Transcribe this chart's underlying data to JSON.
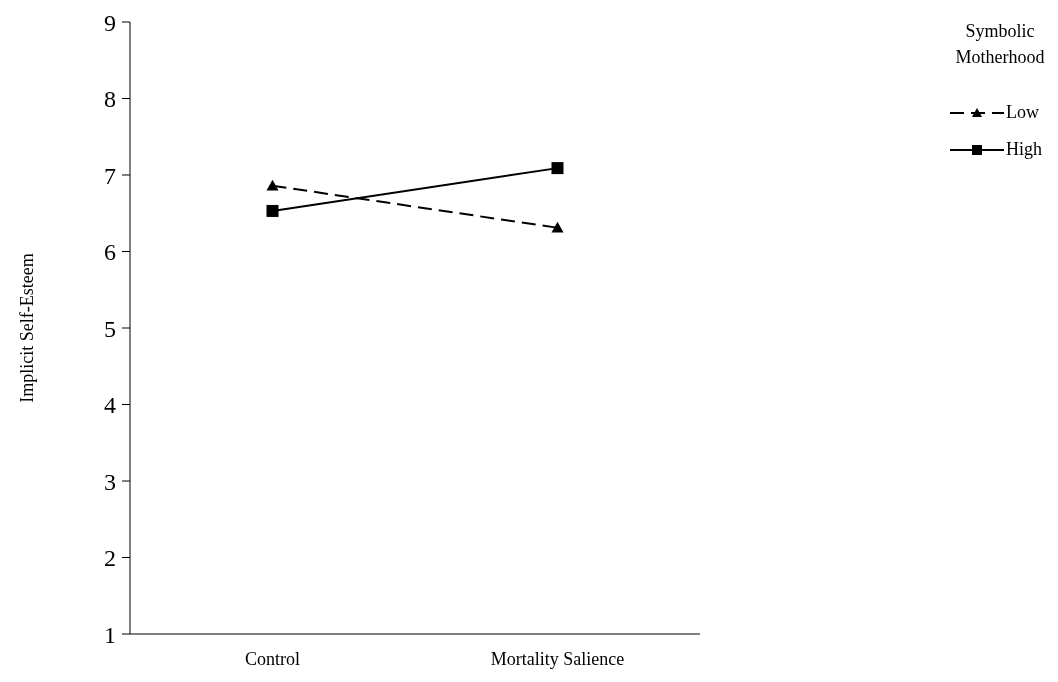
{
  "chart_data": {
    "type": "line",
    "ylabel": "Implicit Self-Esteem",
    "legend_title": "Symbolic Motherhood",
    "categories": [
      "Control",
      "Mortality Salience"
    ],
    "series": [
      {
        "name": "Low",
        "color": "#000000",
        "values": [
          6.86,
          6.31
        ],
        "marker": "triangle",
        "line_style": "dashed"
      },
      {
        "name": "High",
        "color": "#000000",
        "values": [
          6.53,
          7.09
        ],
        "marker": "square",
        "line_style": "solid"
      }
    ],
    "ylim": [
      1,
      9
    ],
    "yticks": [
      1,
      2,
      3,
      4,
      5,
      6,
      7,
      8,
      9
    ],
    "grid": false,
    "legend": "top right"
  }
}
